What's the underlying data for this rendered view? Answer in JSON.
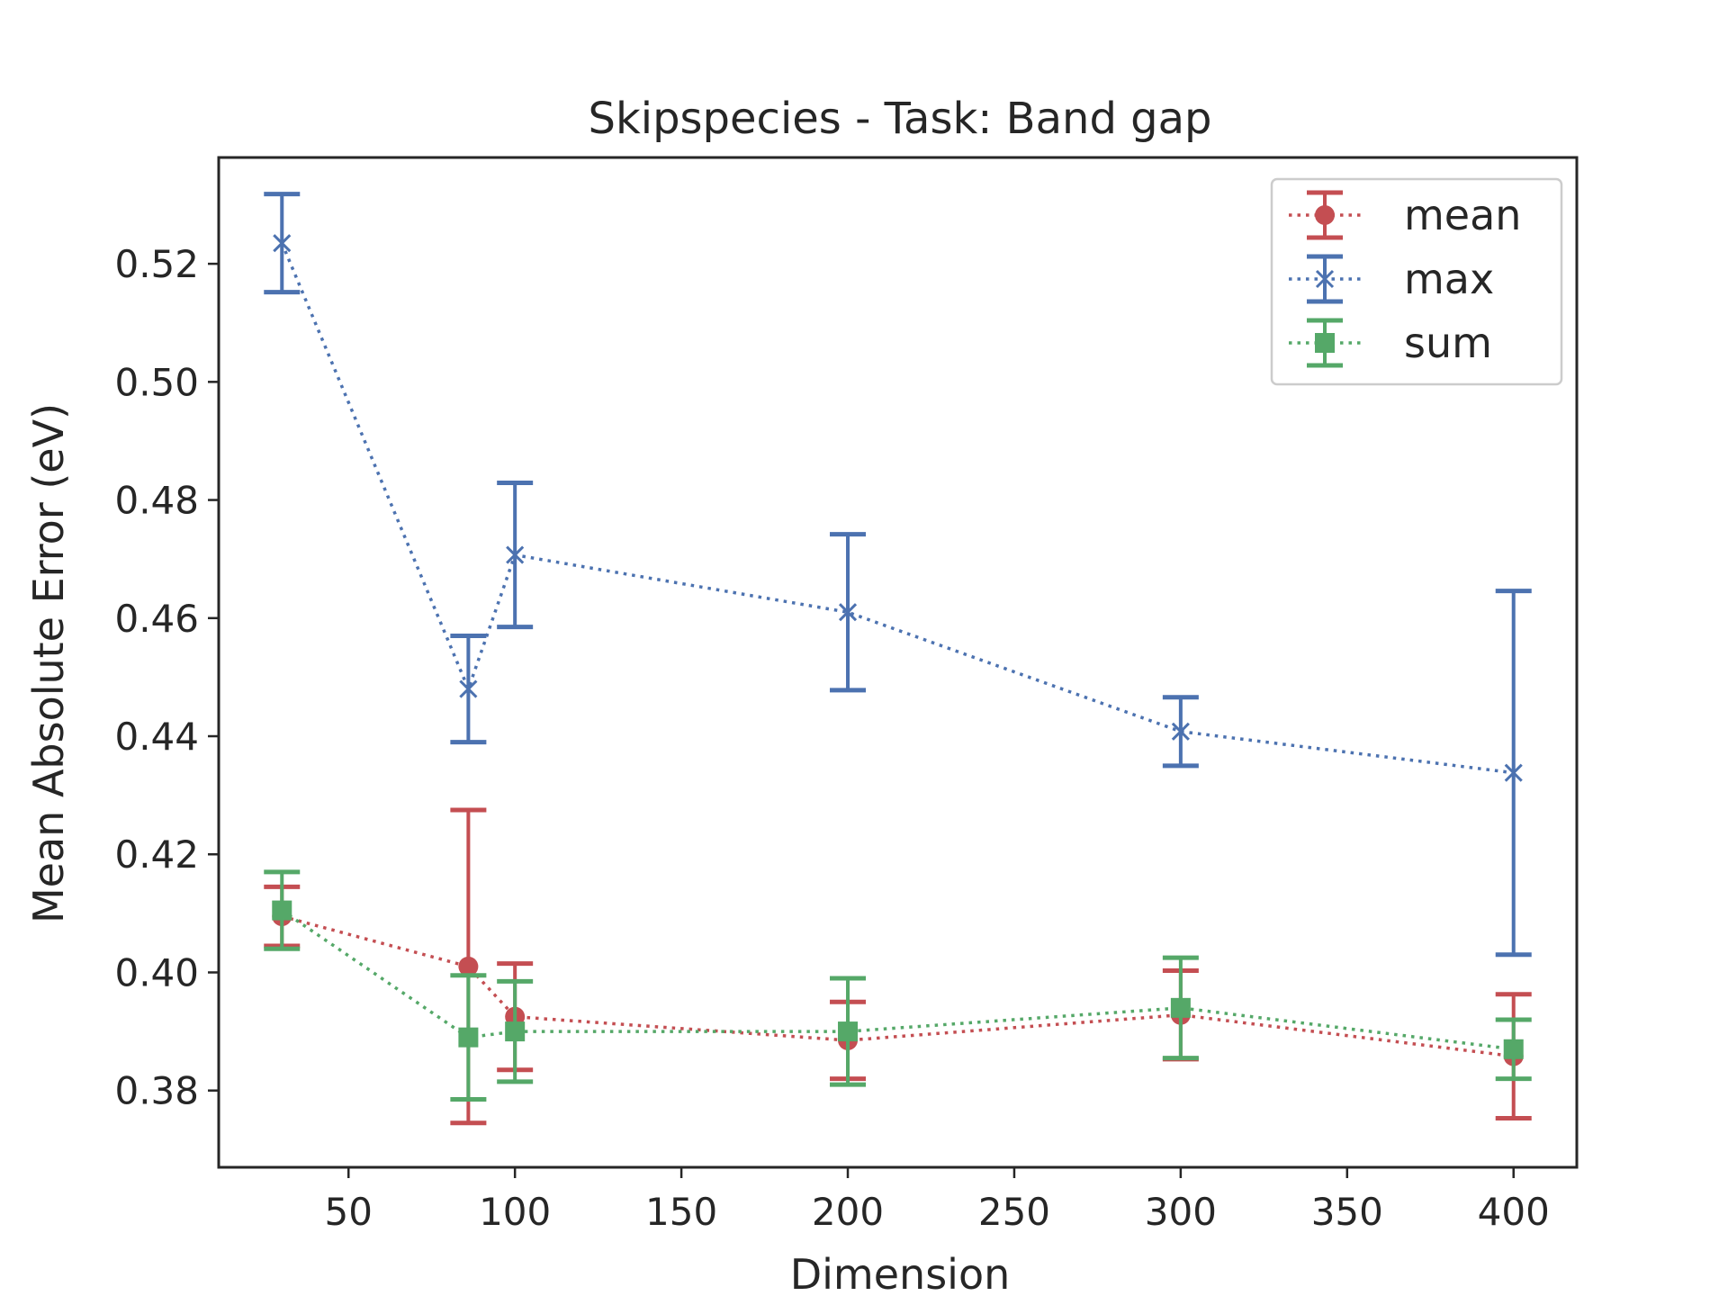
{
  "chart_data": {
    "type": "line",
    "title": "Skipspecies - Task: Band gap",
    "xlabel": "Dimension",
    "ylabel": "Mean Absolute Error (eV)",
    "xlim": [
      11,
      419
    ],
    "ylim": [
      0.367,
      0.538
    ],
    "xticks": [
      50,
      100,
      150,
      200,
      250,
      300,
      350,
      400
    ],
    "yticks": [
      0.38,
      0.4,
      0.42,
      0.44,
      0.46,
      0.48,
      0.5,
      0.52
    ],
    "grid": false,
    "legend_position": "top-right",
    "series": [
      {
        "name": "mean",
        "color": "#c44e52",
        "marker": "circle",
        "x": [
          30,
          86,
          100,
          200,
          300,
          400
        ],
        "y": [
          0.4095,
          0.401,
          0.3925,
          0.3885,
          0.3928,
          0.3858
        ],
        "err": [
          0.005,
          0.0265,
          0.009,
          0.0065,
          0.0075,
          0.0105
        ]
      },
      {
        "name": "max",
        "color": "#4c72b0",
        "marker": "x",
        "x": [
          30,
          86,
          100,
          200,
          300,
          400
        ],
        "y": [
          0.5235,
          0.448,
          0.4707,
          0.461,
          0.4408,
          0.4338
        ],
        "err": [
          0.0083,
          0.009,
          0.0122,
          0.0132,
          0.0058,
          0.0308
        ]
      },
      {
        "name": "sum",
        "color": "#55a868",
        "marker": "square",
        "x": [
          30,
          86,
          100,
          200,
          300,
          400
        ],
        "y": [
          0.4105,
          0.389,
          0.39,
          0.39,
          0.394,
          0.387
        ],
        "err": [
          0.0065,
          0.0105,
          0.0085,
          0.009,
          0.0085,
          0.005
        ]
      }
    ]
  }
}
